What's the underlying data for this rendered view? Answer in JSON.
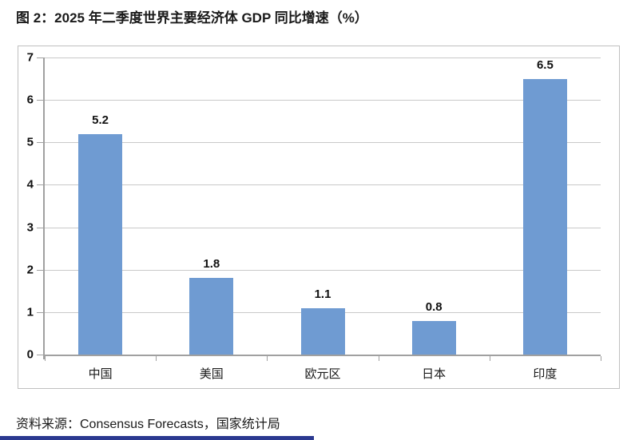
{
  "figure": {
    "title": "图 2：2025 年二季度世界主要经济体 GDP 同比增速（%）",
    "source": "资料来源：Consensus Forecasts，国家统计局"
  },
  "colors": {
    "bar": "#6F9BD2",
    "gridline": "#C9C9C9",
    "axis": "#A0A0A0",
    "chart_border": "#C0C0C0",
    "text": "#1A1A1A",
    "footer_accent": "#2B3990"
  },
  "chart_data": {
    "type": "bar",
    "title": "2025 年二季度世界主要经济体 GDP 同比增速（%）",
    "categories": [
      "中国",
      "美国",
      "欧元区",
      "日本",
      "印度"
    ],
    "values": [
      5.2,
      1.8,
      1.1,
      0.8,
      6.5
    ],
    "data_labels": [
      "5.2",
      "1.8",
      "1.1",
      "0.8",
      "6.5"
    ],
    "xlabel": "",
    "ylabel": "",
    "ylim": [
      0,
      7
    ],
    "yticks": [
      0,
      1,
      2,
      3,
      4,
      5,
      6,
      7
    ],
    "grid": true,
    "legend_position": "none",
    "bar_color": "#6F9BD2"
  }
}
